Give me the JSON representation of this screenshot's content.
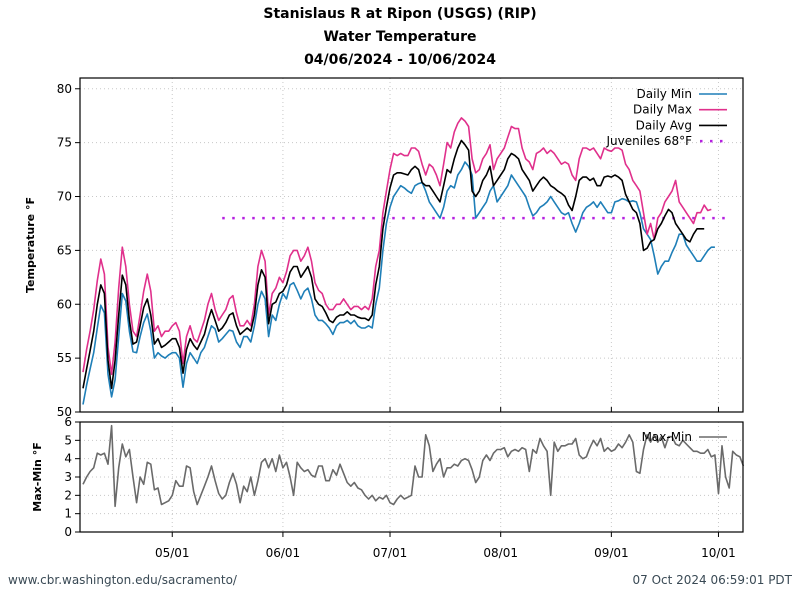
{
  "chart_data": [
    {
      "type": "line",
      "title": "Stanislaus R at Ripon (USGS) (RIP)",
      "subtitle": "Water Temperature",
      "date_range": "04/06/2024 - 10/06/2024",
      "start_date": "2024-04-06",
      "ylabel": "Temperature °F",
      "xlabel": "",
      "ylim": [
        50,
        81
      ],
      "yticks": [
        "50",
        "55",
        "60",
        "65",
        "70",
        "75",
        "80"
      ],
      "xticks": [
        "05/01",
        "06/01",
        "07/01",
        "08/01",
        "09/01",
        "10/01"
      ],
      "grid": true,
      "legend": "top-right",
      "series": [
        {
          "name": "Daily Min",
          "color": "#1f7fb8",
          "values": [
            50.7,
            52.5,
            54.0,
            55.5,
            57.8,
            59.9,
            59.2,
            53.5,
            51.4,
            53.0,
            57.0,
            61.0,
            60.3,
            57.5,
            55.6,
            55.5,
            57.0,
            58.3,
            59.1,
            57.5,
            55.0,
            55.5,
            55.2,
            55.0,
            55.3,
            55.5,
            55.5,
            55.0,
            52.3,
            54.5,
            55.5,
            55.0,
            54.5,
            55.5,
            56.0,
            57.0,
            58.0,
            57.7,
            56.5,
            56.8,
            57.2,
            57.6,
            57.5,
            56.5,
            56.0,
            57.0,
            57.0,
            56.5,
            58.0,
            60.0,
            61.2,
            60.5,
            57.0,
            59.0,
            58.5,
            60.0,
            61.0,
            60.5,
            61.8,
            62.0,
            61.3,
            60.5,
            61.2,
            61.5,
            60.5,
            59.0,
            58.5,
            58.5,
            58.2,
            57.8,
            57.2,
            58.0,
            58.3,
            58.3,
            58.5,
            58.2,
            58.5,
            58.0,
            57.8,
            57.8,
            58.0,
            57.8,
            60.0,
            61.5,
            65.0,
            67.5,
            69.0,
            70.0,
            70.5,
            71.0,
            70.8,
            70.5,
            70.3,
            71.0,
            71.2,
            71.3,
            70.5,
            69.5,
            69.0,
            68.5,
            68.0,
            69.0,
            70.5,
            71.0,
            70.8,
            72.0,
            72.5,
            73.2,
            72.8,
            72.0,
            68.0,
            68.5,
            69.0,
            69.5,
            70.5,
            71.0,
            69.5,
            70.0,
            70.5,
            71.0,
            72.0,
            71.5,
            71.0,
            70.5,
            70.0,
            69.0,
            68.2,
            68.5,
            69.0,
            69.2,
            69.5,
            70.0,
            69.5,
            69.0,
            68.5,
            68.3,
            68.5,
            67.5,
            66.7,
            67.5,
            68.5,
            69.0,
            69.2,
            69.5,
            69.0,
            69.5,
            69.0,
            68.5,
            68.5,
            69.5,
            69.6,
            69.8,
            69.7,
            69.5,
            69.6,
            69.5,
            68.5,
            67.0,
            66.5,
            66.0,
            64.5,
            62.8,
            63.5,
            64.0,
            64.0,
            64.8,
            65.5,
            66.5,
            66.5,
            65.5,
            65.0,
            64.5,
            64.0,
            64.0,
            64.5,
            65.0,
            65.3,
            65.3
          ]
        },
        {
          "name": "Daily Max",
          "color": "#e0308c",
          "values": [
            53.7,
            55.8,
            57.5,
            59.5,
            62.2,
            64.2,
            62.8,
            56.0,
            53.5,
            56.5,
            61.5,
            65.3,
            63.5,
            60.0,
            57.5,
            57.0,
            59.0,
            61.2,
            62.8,
            61.2,
            57.5,
            58.0,
            57.0,
            57.5,
            57.5,
            58.0,
            58.3,
            57.5,
            54.5,
            57.0,
            58.0,
            56.8,
            56.5,
            57.5,
            58.5,
            60.0,
            61.0,
            59.5,
            58.5,
            59.0,
            59.5,
            60.5,
            60.8,
            59.2,
            58.0,
            58.0,
            58.5,
            58.0,
            60.0,
            63.5,
            65.0,
            64.0,
            59.0,
            61.0,
            61.5,
            62.5,
            62.0,
            63.0,
            64.5,
            65.0,
            65.0,
            64.0,
            64.5,
            65.3,
            64.0,
            62.0,
            61.3,
            61.0,
            60.0,
            59.5,
            59.5,
            60.0,
            60.0,
            60.5,
            60.0,
            59.5,
            59.8,
            59.8,
            59.5,
            59.8,
            59.5,
            60.5,
            63.5,
            65.0,
            68.5,
            70.5,
            72.5,
            74.0,
            73.8,
            74.0,
            73.8,
            73.8,
            74.5,
            74.5,
            74.2,
            73.0,
            72.0,
            73.0,
            72.7,
            72.0,
            71.0,
            73.0,
            75.0,
            74.5,
            76.0,
            76.8,
            77.3,
            77.0,
            76.5,
            73.5,
            72.2,
            72.5,
            73.5,
            74.0,
            74.8,
            72.5,
            73.5,
            74.0,
            74.5,
            75.5,
            76.5,
            76.3,
            76.3,
            74.5,
            73.5,
            73.2,
            72.5,
            74.0,
            74.2,
            74.5,
            74.0,
            74.3,
            74.0,
            73.5,
            73.0,
            73.2,
            73.0,
            72.0,
            71.5,
            73.5,
            74.5,
            74.5,
            74.3,
            74.5,
            74.0,
            73.5,
            74.5,
            74.3,
            74.2,
            74.5,
            74.5,
            74.3,
            73.0,
            72.5,
            71.5,
            71.0,
            70.5,
            68.5,
            66.5,
            67.5,
            66.0,
            68.0,
            68.5,
            69.5,
            70.0,
            70.5,
            71.5,
            69.5,
            69.0,
            68.5,
            68.0,
            67.5,
            68.5,
            68.5,
            69.2,
            68.7,
            68.8
          ]
        },
        {
          "name": "Daily Avg",
          "color": "#000000",
          "values": [
            52.2,
            54.0,
            55.7,
            57.5,
            60.0,
            61.8,
            61.0,
            54.8,
            52.2,
            54.8,
            59.0,
            62.7,
            61.8,
            58.5,
            56.3,
            56.5,
            58.0,
            59.7,
            60.5,
            59.0,
            56.3,
            56.8,
            56.0,
            56.2,
            56.5,
            56.8,
            56.8,
            56.0,
            53.6,
            55.8,
            56.8,
            56.2,
            55.8,
            56.5,
            57.2,
            58.5,
            59.5,
            58.5,
            57.5,
            57.8,
            58.3,
            59.0,
            59.2,
            58.0,
            57.2,
            57.5,
            57.8,
            57.5,
            59.0,
            61.8,
            63.2,
            62.5,
            58.2,
            60.0,
            60.2,
            61.0,
            61.2,
            61.8,
            63.0,
            63.5,
            63.5,
            62.5,
            63.0,
            63.5,
            62.5,
            60.5,
            60.0,
            59.8,
            59.2,
            58.5,
            58.3,
            58.8,
            59.0,
            59.0,
            59.3,
            59.0,
            59.0,
            58.8,
            58.7,
            58.7,
            58.5,
            59.0,
            61.8,
            63.5,
            67.0,
            69.0,
            70.8,
            72.0,
            72.2,
            72.2,
            72.1,
            72.0,
            72.5,
            72.8,
            72.5,
            71.3,
            71.0,
            71.0,
            70.5,
            70.0,
            69.5,
            71.0,
            72.5,
            72.2,
            73.5,
            74.5,
            75.2,
            74.8,
            74.3,
            70.5,
            70.0,
            70.5,
            71.5,
            72.0,
            72.8,
            71.0,
            71.5,
            72.0,
            72.5,
            73.5,
            74.0,
            73.8,
            73.5,
            72.5,
            72.0,
            71.5,
            70.5,
            71.0,
            71.5,
            71.8,
            71.5,
            71.0,
            70.8,
            70.5,
            70.3,
            70.0,
            69.2,
            68.7,
            70.0,
            71.5,
            71.8,
            71.8,
            71.5,
            71.7,
            71.0,
            71.0,
            71.8,
            71.9,
            71.8,
            72.0,
            71.8,
            71.5,
            70.2,
            69.5,
            68.8,
            68.5,
            67.5,
            65.0,
            65.2,
            65.8,
            66.0,
            67.0,
            67.5,
            68.2,
            68.8,
            68.5,
            67.5,
            67.0,
            66.5,
            66.0,
            65.8,
            66.5,
            67.0,
            67.0,
            67.0
          ]
        },
        {
          "name": "Juveniles 68°F",
          "color": "#b520e0",
          "threshold": 68,
          "start_day": 39,
          "end_day": 181
        }
      ]
    },
    {
      "type": "line",
      "ylabel": "Max-Min °F",
      "ylim": [
        0,
        6
      ],
      "yticks": [
        "0",
        "1",
        "2",
        "3",
        "4",
        "5",
        "6"
      ],
      "xticks": [
        "05/01",
        "06/01",
        "07/01",
        "08/01",
        "09/01",
        "10/01"
      ],
      "grid": true,
      "legend": "top-right",
      "series": [
        {
          "name": "Max-Min",
          "color": "#6a6a6a",
          "values": [
            2.6,
            3.0,
            3.3,
            3.5,
            4.3,
            4.2,
            4.3,
            3.7,
            5.8,
            1.4,
            3.5,
            4.8,
            4.1,
            4.5,
            3.0,
            1.6,
            3.0,
            2.6,
            3.8,
            3.7,
            2.3,
            2.4,
            1.5,
            1.6,
            1.7,
            2.0,
            2.8,
            2.5,
            2.5,
            3.6,
            3.5,
            2.2,
            1.5,
            2.0,
            2.5,
            3.0,
            3.6,
            2.8,
            2.1,
            1.8,
            2.0,
            2.7,
            3.2,
            2.6,
            1.6,
            2.5,
            2.2,
            3.0,
            2.0,
            2.8,
            3.8,
            4.0,
            3.5,
            4.0,
            3.3,
            4.2,
            3.5,
            3.8,
            3.0,
            2.0,
            3.8,
            3.5,
            3.3,
            3.4,
            3.1,
            3.0,
            3.6,
            3.6,
            2.8,
            2.8,
            3.4,
            3.1,
            3.7,
            3.2,
            2.7,
            2.5,
            2.7,
            2.4,
            2.3,
            2.0,
            1.8,
            2.0,
            1.7,
            1.9,
            1.8,
            2.0,
            1.6,
            1.5,
            1.8,
            2.0,
            1.8,
            1.9,
            2.0,
            3.6,
            3.0,
            3.0,
            5.3,
            4.7,
            3.3,
            3.7,
            4.0,
            3.0,
            3.5,
            3.5,
            3.7,
            3.6,
            3.9,
            4.0,
            3.9,
            3.4,
            2.7,
            3.0,
            3.9,
            4.2,
            3.9,
            4.3,
            4.5,
            4.5,
            4.6,
            4.1,
            4.4,
            4.5,
            4.4,
            4.6,
            4.5,
            3.3,
            4.5,
            4.3,
            5.1,
            4.7,
            4.4,
            2.0,
            4.9,
            4.4,
            4.7,
            4.7,
            4.8,
            4.8,
            5.1,
            4.2,
            4.0,
            4.1,
            4.6,
            5.0,
            4.7,
            5.1,
            4.4,
            4.6,
            4.4,
            4.5,
            4.8,
            4.6,
            4.9,
            5.3,
            4.9,
            3.3,
            3.2,
            4.5,
            5.3,
            4.9,
            5.3,
            4.9,
            5.2,
            4.6,
            5.2,
            5.2,
            4.8,
            4.7,
            5.0,
            4.8,
            4.6,
            4.4,
            4.4,
            4.3,
            4.3,
            4.5,
            4.1,
            4.2,
            2.1,
            4.7,
            3.0,
            2.4,
            4.4,
            4.2,
            4.1,
            3.6
          ]
        }
      ]
    }
  ],
  "footer": {
    "source": "www.cbr.washington.edu/sacramento/",
    "timestamp": "07 Oct 2024 06:59:01 PDT"
  }
}
